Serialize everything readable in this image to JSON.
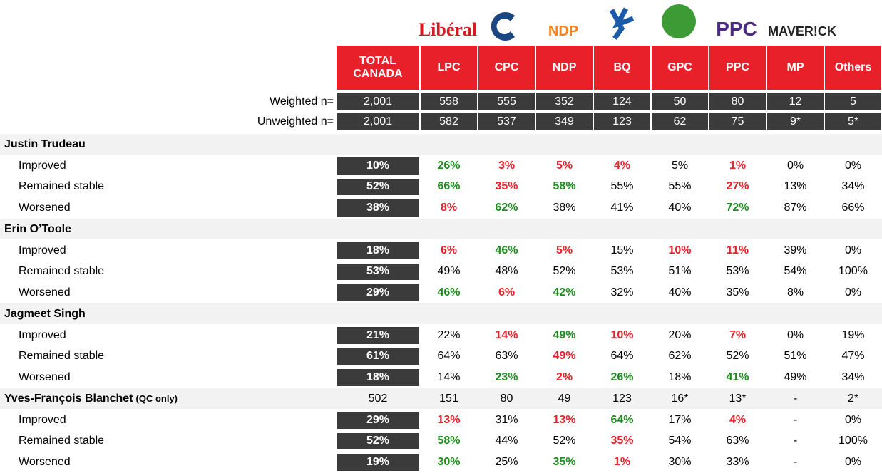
{
  "logos": [
    "Libéral",
    "NDP",
    "PPC",
    "MAVER!CK"
  ],
  "columns": [
    "TOTAL CANADA",
    "LPC",
    "CPC",
    "NDP",
    "BQ",
    "GPC",
    "PPC",
    "MP",
    "Others"
  ],
  "base_rows": [
    {
      "label": "Weighted n=",
      "cells": [
        "2,001",
        "558",
        "555",
        "352",
        "124",
        "50",
        "80",
        "12",
        "5"
      ]
    },
    {
      "label": "Unweighted n=",
      "cells": [
        "2,001",
        "582",
        "537",
        "349",
        "123",
        "62",
        "75",
        "9*",
        "5*"
      ]
    }
  ],
  "sections": [
    {
      "title": "Justin Trudeau",
      "rows": [
        {
          "label": "Improved",
          "total": "10%",
          "cells": [
            "26%",
            "3%",
            "5%",
            "4%",
            "5%",
            "1%",
            "0%",
            "0%"
          ],
          "colors": [
            "g",
            "r",
            "r",
            "r",
            "k",
            "r",
            "k",
            "k"
          ]
        },
        {
          "label": "Remained stable",
          "total": "52%",
          "cells": [
            "66%",
            "35%",
            "58%",
            "55%",
            "55%",
            "27%",
            "13%",
            "34%"
          ],
          "colors": [
            "g",
            "r",
            "g",
            "k",
            "k",
            "r",
            "k",
            "k"
          ]
        },
        {
          "label": "Worsened",
          "total": "38%",
          "cells": [
            "8%",
            "62%",
            "38%",
            "41%",
            "40%",
            "72%",
            "87%",
            "66%"
          ],
          "colors": [
            "r",
            "g",
            "k",
            "k",
            "k",
            "g",
            "k",
            "k"
          ]
        }
      ]
    },
    {
      "title": "Erin O’Toole",
      "rows": [
        {
          "label": "Improved",
          "total": "18%",
          "cells": [
            "6%",
            "46%",
            "5%",
            "15%",
            "10%",
            "11%",
            "39%",
            "0%"
          ],
          "colors": [
            "r",
            "g",
            "r",
            "k",
            "r",
            "r",
            "k",
            "k"
          ]
        },
        {
          "label": "Remained stable",
          "total": "53%",
          "cells": [
            "49%",
            "48%",
            "52%",
            "53%",
            "51%",
            "53%",
            "54%",
            "100%"
          ],
          "colors": [
            "k",
            "k",
            "k",
            "k",
            "k",
            "k",
            "k",
            "k"
          ]
        },
        {
          "label": "Worsened",
          "total": "29%",
          "cells": [
            "46%",
            "6%",
            "42%",
            "32%",
            "40%",
            "35%",
            "8%",
            "0%"
          ],
          "colors": [
            "g",
            "r",
            "g",
            "k",
            "k",
            "k",
            "k",
            "k"
          ]
        }
      ]
    },
    {
      "title": "Jagmeet Singh",
      "rows": [
        {
          "label": "Improved",
          "total": "21%",
          "cells": [
            "22%",
            "14%",
            "49%",
            "10%",
            "20%",
            "7%",
            "0%",
            "19%"
          ],
          "colors": [
            "k",
            "r",
            "g",
            "r",
            "k",
            "r",
            "k",
            "k"
          ]
        },
        {
          "label": "Remained stable",
          "total": "61%",
          "cells": [
            "64%",
            "63%",
            "49%",
            "64%",
            "62%",
            "52%",
            "51%",
            "47%"
          ],
          "colors": [
            "k",
            "k",
            "r",
            "k",
            "k",
            "k",
            "k",
            "k"
          ]
        },
        {
          "label": "Worsened",
          "total": "18%",
          "cells": [
            "14%",
            "23%",
            "2%",
            "26%",
            "18%",
            "41%",
            "49%",
            "34%"
          ],
          "colors": [
            "k",
            "g",
            "r",
            "g",
            "k",
            "g",
            "k",
            "k"
          ]
        }
      ]
    },
    {
      "title": "Yves-François Blanchet",
      "note": "(QC only)",
      "base": [
        "502",
        "151",
        "80",
        "49",
        "123",
        "16*",
        "13*",
        "-",
        "2*"
      ],
      "rows": [
        {
          "label": "Improved",
          "total": "29%",
          "cells": [
            "13%",
            "31%",
            "13%",
            "64%",
            "17%",
            "4%",
            "-",
            "0%"
          ],
          "colors": [
            "r",
            "k",
            "r",
            "g",
            "k",
            "r",
            "k",
            "k"
          ]
        },
        {
          "label": "Remained stable",
          "total": "52%",
          "cells": [
            "58%",
            "44%",
            "52%",
            "35%",
            "54%",
            "63%",
            "-",
            "100%"
          ],
          "colors": [
            "g",
            "k",
            "k",
            "r",
            "k",
            "k",
            "k",
            "k"
          ]
        },
        {
          "label": "Worsened",
          "total": "19%",
          "cells": [
            "30%",
            "25%",
            "35%",
            "1%",
            "30%",
            "33%",
            "-",
            "0%"
          ],
          "colors": [
            "g",
            "k",
            "g",
            "r",
            "k",
            "k",
            "k",
            "k"
          ]
        }
      ]
    }
  ]
}
